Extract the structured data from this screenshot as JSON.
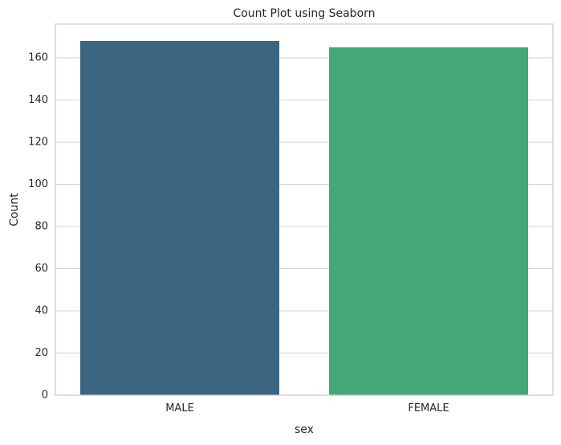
{
  "chart_data": {
    "type": "bar",
    "title": "Count Plot using Seaborn",
    "xlabel": "sex",
    "ylabel": "Count",
    "categories": [
      "MALE",
      "FEMALE"
    ],
    "values": [
      168,
      165
    ],
    "colors": [
      "#3b6580",
      "#44a777"
    ],
    "ylim": [
      0,
      176
    ],
    "yticks": [
      0,
      20,
      40,
      60,
      80,
      100,
      120,
      140,
      160
    ],
    "grid": true,
    "grid_axis": "y",
    "legend": "none",
    "style_colors": {
      "grid": "#d3d3d3",
      "frame": "#cccccc",
      "text": "#262626",
      "background": "#ffffff"
    }
  }
}
